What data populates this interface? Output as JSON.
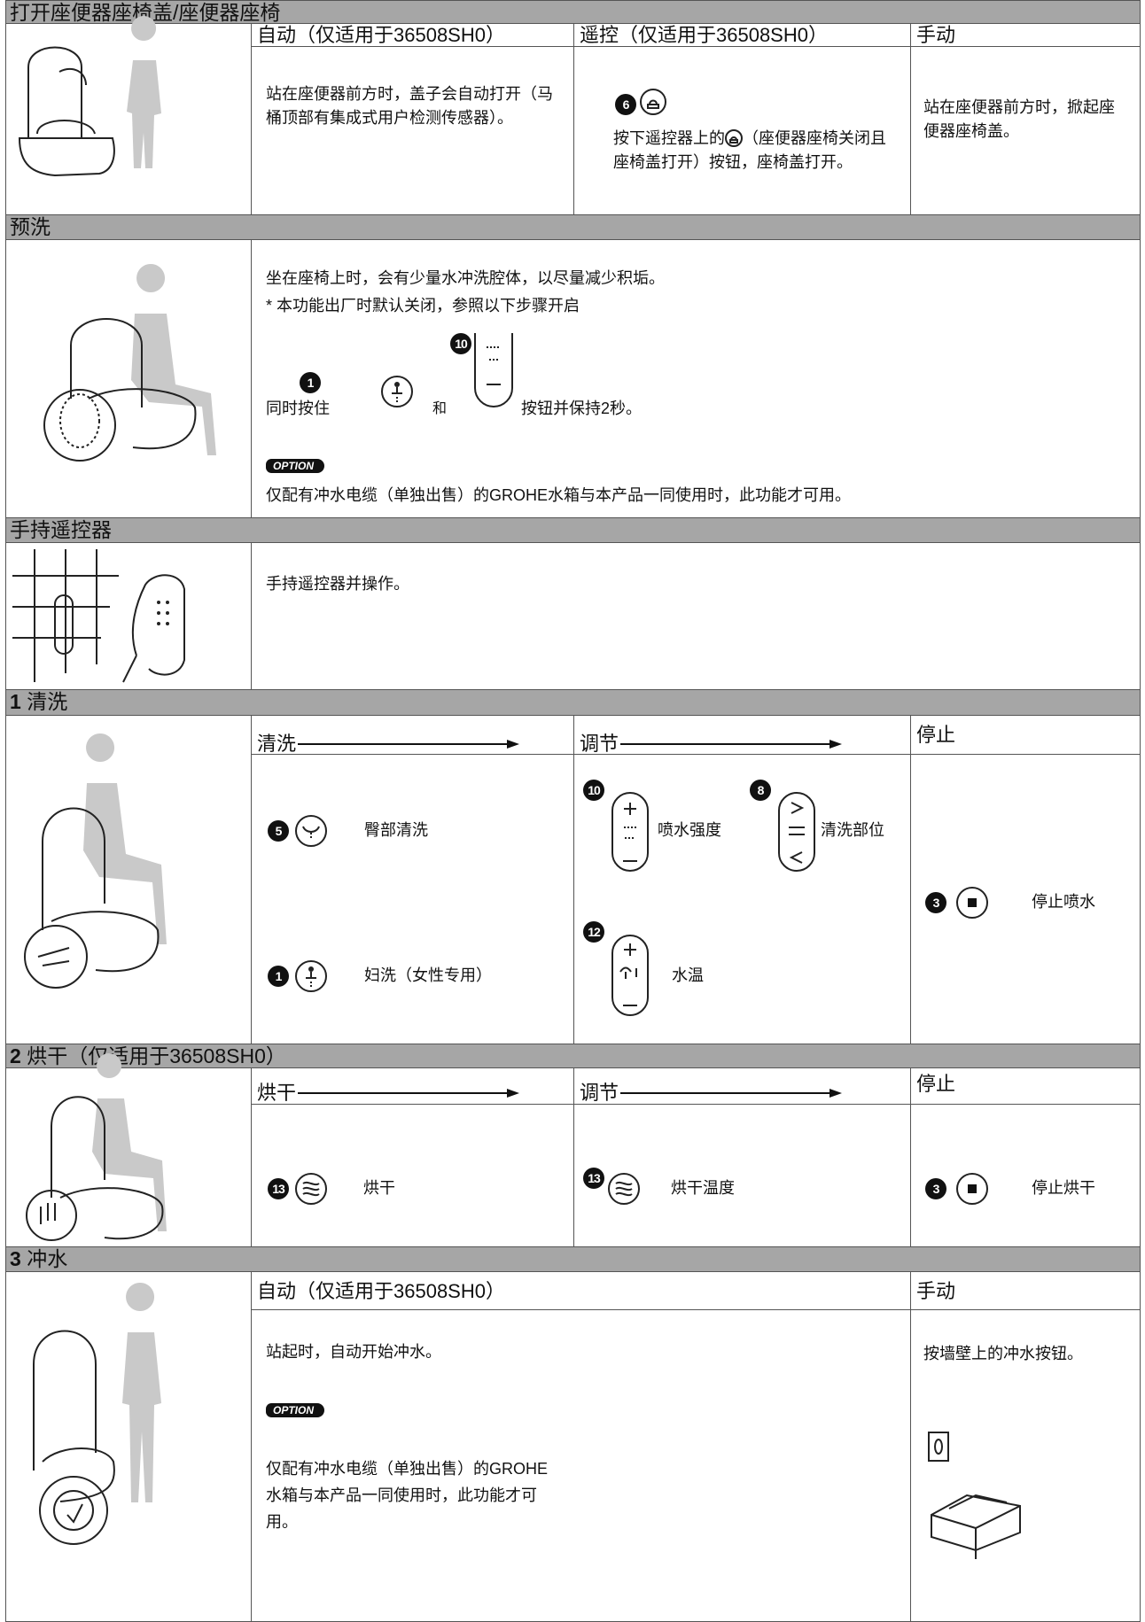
{
  "sections": [
    {
      "title": "打开座便器座椅盖/座便器座椅",
      "columns": [
        {
          "header": "自动（仅适用于36508SH0）",
          "text": "站在座便器前方时，盖子会自动打开（马桶顶部有集成式用户检测传感器）。"
        },
        {
          "header": "遥控（仅适用于36508SH0）",
          "number": "6",
          "text_before": "按下遥控器上的",
          "text_after": "（座便器座椅关闭且座椅盖打开）按钮，座椅盖打开。"
        },
        {
          "header": "手动",
          "text": "站在座便器前方时，掀起座便器座椅盖。"
        }
      ]
    },
    {
      "title": "预洗",
      "lines": [
        "坐在座椅上时，会有少量水冲洗腔体，以尽量减少积垢。",
        "* 本功能出厂时默认关闭，参照以下步骤开启"
      ],
      "instruction": {
        "before": "同时按住",
        "button_a": "1",
        "between": "和",
        "button_b": "10",
        "after": "按钮并保持2秒。"
      },
      "option": "OPTION",
      "note": "仅配有冲水电缆（单独出售）的GROHE水箱与本产品一同使用时，此功能才可用。"
    },
    {
      "title": "手持遥控器",
      "text": "手持遥控器并操作。"
    },
    {
      "number": "1",
      "title": "清洗",
      "columns": [
        {
          "header": "清洗",
          "items": [
            {
              "number": "5",
              "label": "臀部清洗"
            },
            {
              "number": "1",
              "label": "妇洗（女性专用）"
            }
          ]
        },
        {
          "header": "调节",
          "items": [
            {
              "number": "10",
              "label": "喷水强度"
            },
            {
              "number": "8",
              "label": "清洗部位"
            },
            {
              "number": "12",
              "label": "水温"
            }
          ]
        },
        {
          "header": "停止",
          "items": [
            {
              "number": "3",
              "label": "停止喷水"
            }
          ]
        }
      ]
    },
    {
      "number": "2",
      "title": "烘干（仅适用于36508SH0）",
      "columns": [
        {
          "header": "烘干",
          "items": [
            {
              "number": "13",
              "label": "烘干"
            }
          ]
        },
        {
          "header": "调节",
          "items": [
            {
              "number": "13",
              "label": "烘干温度"
            }
          ]
        },
        {
          "header": "停止",
          "items": [
            {
              "number": "3",
              "label": "停止烘干"
            }
          ]
        }
      ]
    },
    {
      "number": "3",
      "title": "冲水",
      "columns": [
        {
          "header": "自动（仅适用于36508SH0）",
          "text": "站起时，自动开始冲水。",
          "option": "OPTION",
          "note": "仅配有冲水电缆（单独出售）的GROHE水箱与本产品一同使用时，此功能才可用。"
        },
        {
          "header": "手动",
          "text": "按墙壁上的冲水按钮。"
        }
      ]
    }
  ]
}
